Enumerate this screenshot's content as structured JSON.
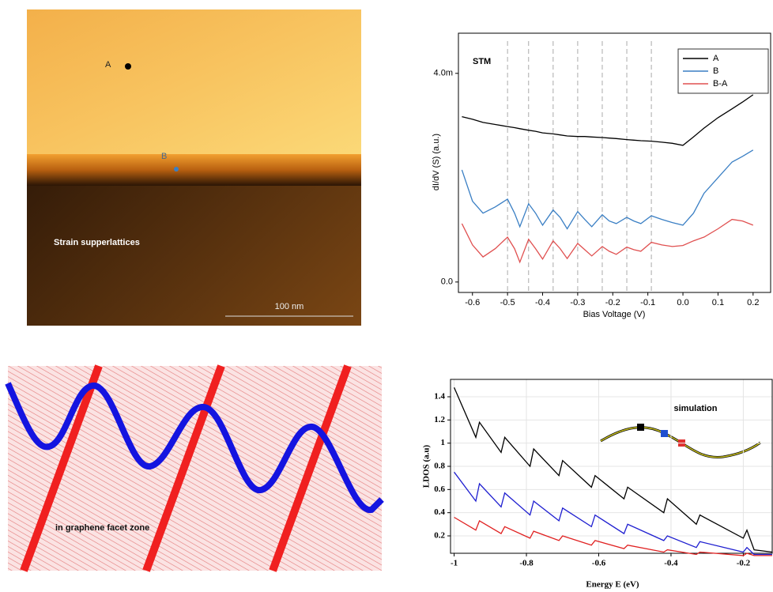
{
  "panels": {
    "afm": {
      "label_a": "A",
      "label_b": "B",
      "caption": "Strain supperlattices",
      "scale_bar": "100 nm"
    },
    "facet": {
      "caption": "in graphene facet zone"
    }
  },
  "chart_data": [
    {
      "type": "line",
      "title": "STM",
      "x_label": "Bias Voltage (V)",
      "y_label": "dI/dV (S) (a.u.)",
      "x": [
        -0.63,
        -0.6,
        -0.57,
        -0.535,
        -0.5,
        -0.48,
        -0.465,
        -0.44,
        -0.42,
        -0.4,
        -0.37,
        -0.35,
        -0.33,
        -0.3,
        -0.28,
        -0.26,
        -0.23,
        -0.21,
        -0.19,
        -0.16,
        -0.14,
        -0.12,
        -0.09,
        -0.06,
        -0.03,
        0,
        0.03,
        0.06,
        0.1,
        0.14,
        0.17,
        0.2
      ],
      "series": [
        {
          "name": "A",
          "color": "#000000",
          "values": [
            0.00317,
            0.00312,
            0.00306,
            0.00302,
            0.00298,
            0.00296,
            0.00294,
            0.00291,
            0.00289,
            0.00286,
            0.00284,
            0.00282,
            0.0028,
            0.00279,
            0.00279,
            0.00278,
            0.00277,
            0.00276,
            0.00275,
            0.00273,
            0.00272,
            0.00271,
            0.0027,
            0.00268,
            0.00266,
            0.00262,
            0.00278,
            0.00295,
            0.00315,
            0.00332,
            0.00345,
            0.00359
          ]
        },
        {
          "name": "B",
          "color": "#3a7fc4",
          "values": [
            0.00215,
            0.00155,
            0.00132,
            0.00144,
            0.00159,
            0.00132,
            0.00106,
            0.0015,
            0.00132,
            0.00109,
            0.00138,
            0.00124,
            0.00102,
            0.00135,
            0.0012,
            0.00106,
            0.00129,
            0.00117,
            0.00112,
            0.00124,
            0.00117,
            0.00112,
            0.00127,
            0.0012,
            0.00114,
            0.00109,
            0.00132,
            0.0017,
            0.002,
            0.0023,
            0.00241,
            0.00253
          ]
        },
        {
          "name": "B-A",
          "color": "#e05050",
          "values": [
            0.00112,
            0.00071,
            0.00048,
            0.00064,
            0.00086,
            0.00064,
            0.00038,
            0.00082,
            0.00064,
            0.00044,
            0.00079,
            0.00064,
            0.00045,
            0.00074,
            0.00062,
            0.0005,
            0.00068,
            0.00059,
            0.00053,
            0.00067,
            0.00062,
            0.00059,
            0.00076,
            0.00071,
            0.00068,
            0.0007,
            0.00079,
            0.00086,
            0.00102,
            0.0012,
            0.00117,
            0.00109
          ]
        }
      ],
      "dashed_lines": [
        -0.5,
        -0.44,
        -0.37,
        -0.3,
        -0.23,
        -0.16,
        -0.09
      ],
      "xlim": [
        -0.64,
        0.25
      ],
      "ylim": [
        -0.0002,
        0.00477
      ],
      "xticks": [
        -0.6,
        -0.5,
        -0.4,
        -0.3,
        -0.2,
        -0.1,
        {
          "value": 0,
          "label": "0.0"
        },
        0.1,
        0.2
      ],
      "yticks": [
        {
          "value": 0,
          "label": "0.0"
        },
        {
          "value": 0.004,
          "label": "4.0m"
        }
      ],
      "grid": false,
      "legend": "upper right"
    },
    {
      "type": "line",
      "annotation": "simulation",
      "x_label": "Energy E (eV)",
      "y_label": "LDOS (a.u)",
      "x": [
        -1,
        -0.94,
        -0.93,
        -0.87,
        -0.86,
        -0.79,
        -0.78,
        -0.71,
        -0.7,
        -0.62,
        -0.61,
        -0.53,
        -0.52,
        -0.42,
        -0.41,
        -0.33,
        -0.32,
        -0.2,
        -0.19,
        -0.17,
        -0.12
      ],
      "series": [
        {
          "color": "#000000",
          "values": [
            1.48,
            1.05,
            1.18,
            0.92,
            1.05,
            0.8,
            0.95,
            0.72,
            0.85,
            0.62,
            0.72,
            0.52,
            0.62,
            0.4,
            0.52,
            0.3,
            0.38,
            0.18,
            0.25,
            0.08,
            0.06
          ]
        },
        {
          "color": "#1f1fd0",
          "values": [
            0.75,
            0.5,
            0.65,
            0.45,
            0.57,
            0.38,
            0.5,
            0.33,
            0.44,
            0.28,
            0.38,
            0.22,
            0.3,
            0.16,
            0.2,
            0.1,
            0.15,
            0.06,
            0.1,
            0.04,
            0.04
          ]
        },
        {
          "color": "#e02020",
          "values": [
            0.36,
            0.25,
            0.33,
            0.22,
            0.28,
            0.18,
            0.24,
            0.16,
            0.2,
            0.12,
            0.16,
            0.09,
            0.12,
            0.06,
            0.08,
            0.04,
            0.06,
            0.03,
            0.05,
            0.03,
            0.03
          ]
        }
      ],
      "xlim": [
        -1.01,
        -0.12
      ],
      "ylim": [
        0.05,
        1.55
      ],
      "xticks": [
        -1,
        -0.8,
        -0.6,
        -0.4,
        -0.2
      ],
      "yticks": [
        0.2,
        0.4,
        0.6,
        0.8,
        1,
        1.2,
        1.4
      ],
      "grid": true
    }
  ]
}
